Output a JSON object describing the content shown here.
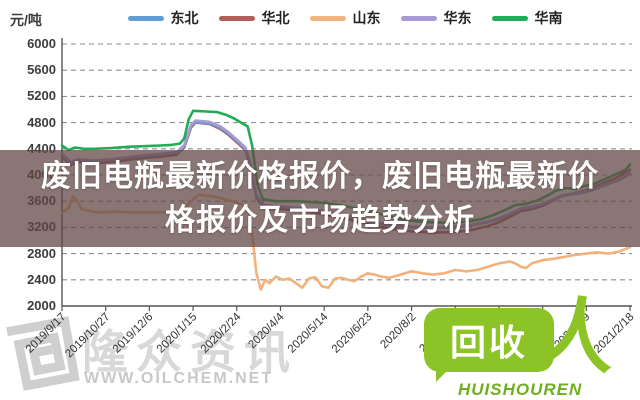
{
  "unit_label": "元/吨",
  "banner": {
    "line1": "废旧电瓶最新价格报价，废旧电瓶最新价",
    "line2": "格报价及市场趋势分析"
  },
  "watermarks": {
    "left_name": "隆众资讯",
    "left_url": "WWW.OILCHEM.NET",
    "right_logo_text": "回收",
    "right_person_glyph": "人",
    "right_caption": "HUISHOUREN",
    "right_color": "#8cc427"
  },
  "chart_data": {
    "type": "line",
    "title": "",
    "ylabel": "元/吨",
    "ylim": [
      2000,
      6000
    ],
    "ytick_step": 400,
    "grid": "dashed-horizontal",
    "legend_position": "top",
    "x_domain": [
      0,
      520
    ],
    "x_tick_days": [
      0,
      40,
      80,
      120,
      160,
      200,
      240,
      280,
      320,
      360,
      400,
      440,
      480,
      520
    ],
    "x_tick_labels": [
      "2019/9/17",
      "2019/10/27",
      "2019/12/6",
      "2020/1/15",
      "2020/2/24",
      "2020/4/4",
      "2020/5/14",
      "2020/6/23",
      "2020/8/2",
      "2020/9/11",
      "2020/10/21",
      "2020/11/30",
      "2021/1/9",
      "2021/2/18"
    ],
    "series": [
      {
        "name": "山东",
        "key": "shandong",
        "color": "#f2b27c",
        "points": [
          [
            0,
            3420
          ],
          [
            6,
            3500
          ],
          [
            10,
            3680
          ],
          [
            14,
            3600
          ],
          [
            18,
            3480
          ],
          [
            25,
            3450
          ],
          [
            35,
            3430
          ],
          [
            50,
            3440
          ],
          [
            65,
            3430
          ],
          [
            80,
            3430
          ],
          [
            95,
            3430
          ],
          [
            110,
            3450
          ],
          [
            118,
            3600
          ],
          [
            125,
            3700
          ],
          [
            135,
            3680
          ],
          [
            145,
            3650
          ],
          [
            155,
            3600
          ],
          [
            165,
            3550
          ],
          [
            170,
            3500
          ],
          [
            174,
            3100
          ],
          [
            178,
            2500
          ],
          [
            182,
            2250
          ],
          [
            186,
            2400
          ],
          [
            190,
            2350
          ],
          [
            196,
            2450
          ],
          [
            202,
            2400
          ],
          [
            208,
            2420
          ],
          [
            214,
            2350
          ],
          [
            220,
            2280
          ],
          [
            226,
            2420
          ],
          [
            232,
            2440
          ],
          [
            238,
            2300
          ],
          [
            244,
            2280
          ],
          [
            250,
            2420
          ],
          [
            256,
            2430
          ],
          [
            262,
            2400
          ],
          [
            268,
            2380
          ],
          [
            274,
            2450
          ],
          [
            280,
            2500
          ],
          [
            286,
            2480
          ],
          [
            292,
            2450
          ],
          [
            300,
            2430
          ],
          [
            310,
            2480
          ],
          [
            320,
            2530
          ],
          [
            330,
            2500
          ],
          [
            340,
            2480
          ],
          [
            350,
            2500
          ],
          [
            360,
            2550
          ],
          [
            370,
            2530
          ],
          [
            380,
            2550
          ],
          [
            390,
            2600
          ],
          [
            400,
            2650
          ],
          [
            410,
            2680
          ],
          [
            415,
            2650
          ],
          [
            420,
            2600
          ],
          [
            425,
            2580
          ],
          [
            430,
            2650
          ],
          [
            440,
            2700
          ],
          [
            450,
            2720
          ],
          [
            460,
            2750
          ],
          [
            470,
            2780
          ],
          [
            480,
            2800
          ],
          [
            490,
            2820
          ],
          [
            500,
            2800
          ],
          [
            510,
            2830
          ],
          [
            520,
            2900
          ]
        ]
      },
      {
        "name": "华北",
        "key": "huabei",
        "color": "#b25f5c",
        "points": [
          [
            0,
            4280
          ],
          [
            8,
            4150
          ],
          [
            15,
            4200
          ],
          [
            30,
            4180
          ],
          [
            45,
            4200
          ],
          [
            60,
            4230
          ],
          [
            75,
            4260
          ],
          [
            90,
            4280
          ],
          [
            105,
            4310
          ],
          [
            112,
            4420
          ],
          [
            118,
            4720
          ],
          [
            122,
            4800
          ],
          [
            135,
            4780
          ],
          [
            145,
            4700
          ],
          [
            152,
            4620
          ],
          [
            160,
            4500
          ],
          [
            168,
            4380
          ],
          [
            172,
            4150
          ],
          [
            178,
            3650
          ],
          [
            185,
            3500
          ],
          [
            200,
            3480
          ],
          [
            220,
            3450
          ],
          [
            240,
            3400
          ],
          [
            260,
            3330
          ],
          [
            280,
            3250
          ],
          [
            300,
            3180
          ],
          [
            320,
            3140
          ],
          [
            340,
            3120
          ],
          [
            360,
            3130
          ],
          [
            375,
            3160
          ],
          [
            390,
            3220
          ],
          [
            400,
            3280
          ],
          [
            410,
            3360
          ],
          [
            420,
            3450
          ],
          [
            430,
            3480
          ],
          [
            440,
            3530
          ],
          [
            450,
            3610
          ],
          [
            458,
            3690
          ],
          [
            465,
            3710
          ],
          [
            475,
            3740
          ],
          [
            485,
            3800
          ],
          [
            495,
            3870
          ],
          [
            505,
            3940
          ],
          [
            512,
            4000
          ],
          [
            520,
            4080
          ]
        ]
      },
      {
        "name": "东北",
        "key": "dongbei",
        "color": "#5e9fd8",
        "points": [
          [
            0,
            4300
          ],
          [
            8,
            4190
          ],
          [
            15,
            4230
          ],
          [
            30,
            4210
          ],
          [
            45,
            4230
          ],
          [
            60,
            4260
          ],
          [
            75,
            4290
          ],
          [
            90,
            4310
          ],
          [
            105,
            4340
          ],
          [
            112,
            4440
          ],
          [
            118,
            4740
          ],
          [
            122,
            4810
          ],
          [
            135,
            4790
          ],
          [
            145,
            4720
          ],
          [
            152,
            4640
          ],
          [
            160,
            4520
          ],
          [
            168,
            4400
          ],
          [
            172,
            4180
          ],
          [
            178,
            3680
          ],
          [
            185,
            3530
          ],
          [
            200,
            3510
          ],
          [
            220,
            3480
          ],
          [
            240,
            3440
          ],
          [
            260,
            3370
          ],
          [
            280,
            3290
          ],
          [
            300,
            3230
          ],
          [
            320,
            3200
          ],
          [
            340,
            3190
          ],
          [
            360,
            3200
          ],
          [
            375,
            3230
          ],
          [
            390,
            3280
          ],
          [
            400,
            3330
          ],
          [
            410,
            3400
          ],
          [
            420,
            3480
          ],
          [
            430,
            3510
          ],
          [
            440,
            3550
          ],
          [
            450,
            3620
          ],
          [
            458,
            3680
          ],
          [
            465,
            3700
          ],
          [
            475,
            3720
          ],
          [
            485,
            3770
          ],
          [
            495,
            3830
          ],
          [
            505,
            3890
          ],
          [
            512,
            3940
          ],
          [
            520,
            4020
          ]
        ]
      },
      {
        "name": "华东",
        "key": "huadong",
        "color": "#a89ad4",
        "points": [
          [
            0,
            4320
          ],
          [
            8,
            4200
          ],
          [
            15,
            4240
          ],
          [
            30,
            4220
          ],
          [
            45,
            4240
          ],
          [
            60,
            4270
          ],
          [
            75,
            4300
          ],
          [
            90,
            4320
          ],
          [
            105,
            4350
          ],
          [
            112,
            4460
          ],
          [
            118,
            4760
          ],
          [
            122,
            4830
          ],
          [
            135,
            4810
          ],
          [
            145,
            4740
          ],
          [
            152,
            4660
          ],
          [
            160,
            4540
          ],
          [
            168,
            4420
          ],
          [
            172,
            4200
          ],
          [
            178,
            3700
          ],
          [
            185,
            3540
          ],
          [
            200,
            3520
          ],
          [
            220,
            3490
          ],
          [
            240,
            3450
          ],
          [
            260,
            3380
          ],
          [
            280,
            3300
          ],
          [
            300,
            3240
          ],
          [
            320,
            3210
          ],
          [
            340,
            3200
          ],
          [
            360,
            3210
          ],
          [
            375,
            3240
          ],
          [
            390,
            3290
          ],
          [
            400,
            3340
          ],
          [
            410,
            3410
          ],
          [
            420,
            3490
          ],
          [
            430,
            3520
          ],
          [
            440,
            3560
          ],
          [
            450,
            3630
          ],
          [
            458,
            3690
          ],
          [
            465,
            3710
          ],
          [
            475,
            3730
          ],
          [
            485,
            3780
          ],
          [
            495,
            3840
          ],
          [
            505,
            3900
          ],
          [
            512,
            3950
          ],
          [
            520,
            4030
          ]
        ]
      },
      {
        "name": "华南",
        "key": "huanan",
        "color": "#21ac55",
        "points": [
          [
            0,
            4450
          ],
          [
            6,
            4380
          ],
          [
            12,
            4420
          ],
          [
            20,
            4400
          ],
          [
            30,
            4400
          ],
          [
            45,
            4410
          ],
          [
            60,
            4430
          ],
          [
            75,
            4440
          ],
          [
            90,
            4450
          ],
          [
            100,
            4460
          ],
          [
            108,
            4480
          ],
          [
            112,
            4560
          ],
          [
            116,
            4850
          ],
          [
            120,
            4980
          ],
          [
            132,
            4970
          ],
          [
            142,
            4960
          ],
          [
            150,
            4920
          ],
          [
            158,
            4860
          ],
          [
            164,
            4800
          ],
          [
            170,
            4740
          ],
          [
            174,
            4450
          ],
          [
            179,
            3850
          ],
          [
            184,
            3630
          ],
          [
            195,
            3600
          ],
          [
            215,
            3600
          ],
          [
            235,
            3580
          ],
          [
            255,
            3540
          ],
          [
            275,
            3470
          ],
          [
            295,
            3390
          ],
          [
            315,
            3310
          ],
          [
            335,
            3280
          ],
          [
            355,
            3270
          ],
          [
            372,
            3290
          ],
          [
            385,
            3330
          ],
          [
            395,
            3390
          ],
          [
            405,
            3460
          ],
          [
            415,
            3540
          ],
          [
            425,
            3560
          ],
          [
            435,
            3610
          ],
          [
            445,
            3690
          ],
          [
            452,
            3760
          ],
          [
            460,
            3800
          ],
          [
            470,
            3790
          ],
          [
            478,
            3830
          ],
          [
            488,
            3870
          ],
          [
            496,
            3930
          ],
          [
            504,
            3990
          ],
          [
            511,
            4040
          ],
          [
            516,
            4080
          ],
          [
            520,
            4160
          ]
        ]
      }
    ],
    "legend_order": [
      "东北",
      "华北",
      "山东",
      "华东",
      "华南"
    ]
  }
}
